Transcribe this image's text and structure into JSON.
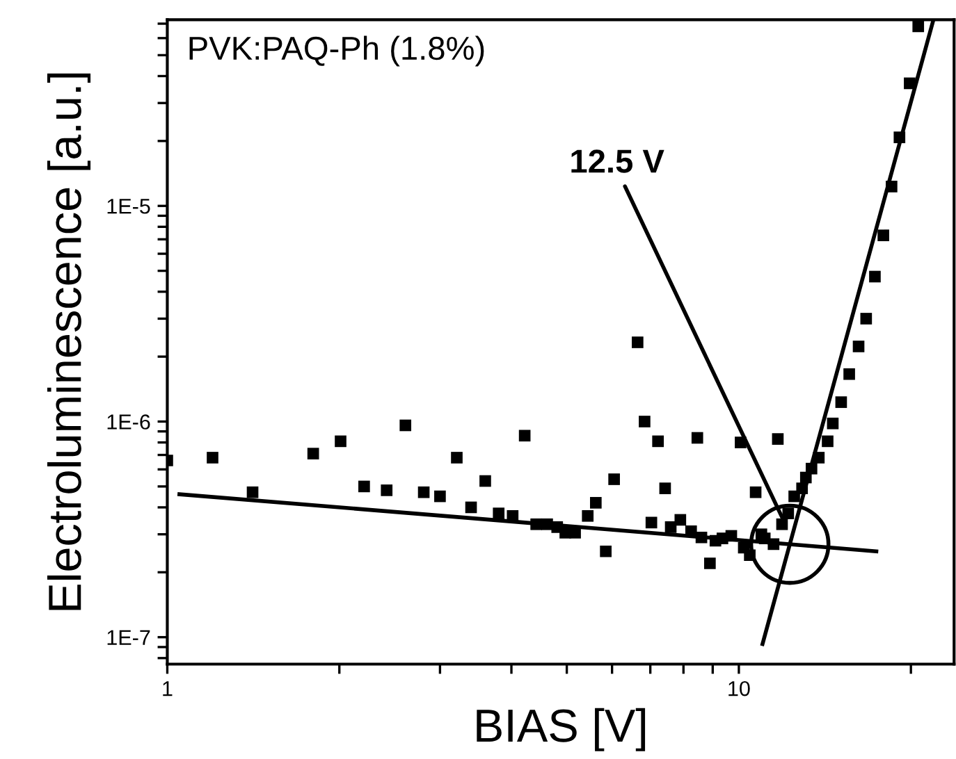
{
  "chart_data": {
    "type": "scatter",
    "title": "PVK:PAQ-Ph (1.8%)",
    "xlabel": "BIAS [V]",
    "ylabel": "Electroluminescence [a.u.]",
    "log": "xy",
    "grid": false,
    "legend": false,
    "xlim": [
      1,
      23.8
    ],
    "ylim": [
      7.5e-08,
      7.3e-05
    ],
    "xticks": [
      1,
      {
        "value": 2,
        "label": null
      },
      {
        "value": 3,
        "label": null
      },
      {
        "value": 4,
        "label": null
      },
      {
        "value": 5,
        "label": null
      },
      {
        "value": 6,
        "label": null
      },
      {
        "value": 7,
        "label": null
      },
      {
        "value": 8,
        "label": null
      },
      {
        "value": 9,
        "label": null
      },
      10,
      {
        "value": 20,
        "label": null
      }
    ],
    "yticks": [
      {
        "value": 8e-08,
        "label": null
      },
      {
        "value": 9e-08,
        "label": null
      },
      {
        "value": 1e-07,
        "label": "1E-7"
      },
      {
        "value": 2e-07,
        "label": null
      },
      {
        "value": 3e-07,
        "label": null
      },
      {
        "value": 4e-07,
        "label": null
      },
      {
        "value": 5e-07,
        "label": null
      },
      {
        "value": 6e-07,
        "label": null
      },
      {
        "value": 7e-07,
        "label": null
      },
      {
        "value": 8e-07,
        "label": null
      },
      {
        "value": 9e-07,
        "label": null
      },
      {
        "value": 1e-06,
        "label": "1E-6"
      },
      {
        "value": 2e-06,
        "label": null
      },
      {
        "value": 3e-06,
        "label": null
      },
      {
        "value": 4e-06,
        "label": null
      },
      {
        "value": 5e-06,
        "label": null
      },
      {
        "value": 6e-06,
        "label": null
      },
      {
        "value": 7e-06,
        "label": null
      },
      {
        "value": 8e-06,
        "label": null
      },
      {
        "value": 9e-06,
        "label": null
      },
      {
        "value": 1e-05,
        "label": "1E-5"
      },
      {
        "value": 2e-05,
        "label": null
      },
      {
        "value": 3e-05,
        "label": null
      },
      {
        "value": 4e-05,
        "label": null
      },
      {
        "value": 5e-05,
        "label": null
      },
      {
        "value": 6e-05,
        "label": null
      },
      {
        "value": 7e-05,
        "label": null
      }
    ],
    "annotations": [
      {
        "text": "12.5 V",
        "x": 11.9,
        "y": 3.6e-07
      }
    ],
    "series": [
      {
        "color": "#000000",
        "marker": "square",
        "x": [
          1.0,
          1.2,
          1.41,
          1.8,
          2.01,
          2.21,
          2.42,
          2.61,
          2.81,
          3.0,
          3.21,
          3.4,
          3.6,
          3.8,
          4.02,
          4.22,
          4.42,
          4.62,
          4.81,
          4.97,
          5.17,
          5.44,
          5.62,
          5.85,
          6.05,
          6.65,
          6.84,
          7.03,
          7.22,
          7.43,
          7.6,
          7.9,
          8.25,
          8.46,
          8.6,
          8.9,
          9.1,
          9.36,
          9.7,
          10.07,
          10.2,
          10.45,
          10.7,
          10.95,
          11.1,
          11.5,
          11.7,
          11.9,
          12.2,
          12.5,
          12.9,
          13.1,
          13.4,
          13.8,
          14.3,
          14.6,
          15.1,
          15.6,
          16.2,
          16.7,
          17.3,
          17.9,
          18.5,
          19.1,
          19.9,
          20.6
        ],
        "values": [
          6.6e-07,
          6.8e-07,
          4.7e-07,
          7.1e-07,
          8.1e-07,
          5e-07,
          4.8e-07,
          9.6e-07,
          4.7e-07,
          4.5e-07,
          6.8e-07,
          4e-07,
          5.3e-07,
          3.75e-07,
          3.65e-07,
          8.6e-07,
          3.34e-07,
          3.34e-07,
          3.24e-07,
          3.05e-07,
          3.05e-07,
          3.65e-07,
          4.2e-07,
          2.5e-07,
          5.4e-07,
          2.33e-06,
          1e-06,
          3.4e-07,
          8.1e-07,
          4.9e-07,
          3.24e-07,
          3.5e-07,
          3.1e-07,
          8.4e-07,
          2.9e-07,
          2.2e-07,
          2.8e-07,
          2.87e-07,
          2.95e-07,
          8e-07,
          2.6e-07,
          2.4e-07,
          4.7e-07,
          3e-07,
          2.87e-07,
          2.7e-07,
          8.3e-07,
          3.34e-07,
          3.75e-07,
          4.5e-07,
          4.9e-07,
          5.5e-07,
          6.05e-07,
          6.8e-07,
          8.1e-07,
          9.8e-07,
          1.23e-06,
          1.66e-06,
          2.23e-06,
          3e-06,
          4.7e-06,
          7.3e-06,
          1.23e-05,
          2.08e-05,
          3.7e-05,
          6.8e-05
        ]
      },
      {
        "type": "line",
        "color": "#000000",
        "line_style": "solid",
        "x": [
          1.05,
          17.4
        ],
        "values": [
          4.6e-07,
          2.5e-07
        ]
      },
      {
        "type": "line",
        "color": "#000000",
        "line_style": "solid",
        "x": [
          11.0,
          21.9
        ],
        "values": [
          9.3e-08,
          7.3e-05
        ]
      }
    ]
  }
}
